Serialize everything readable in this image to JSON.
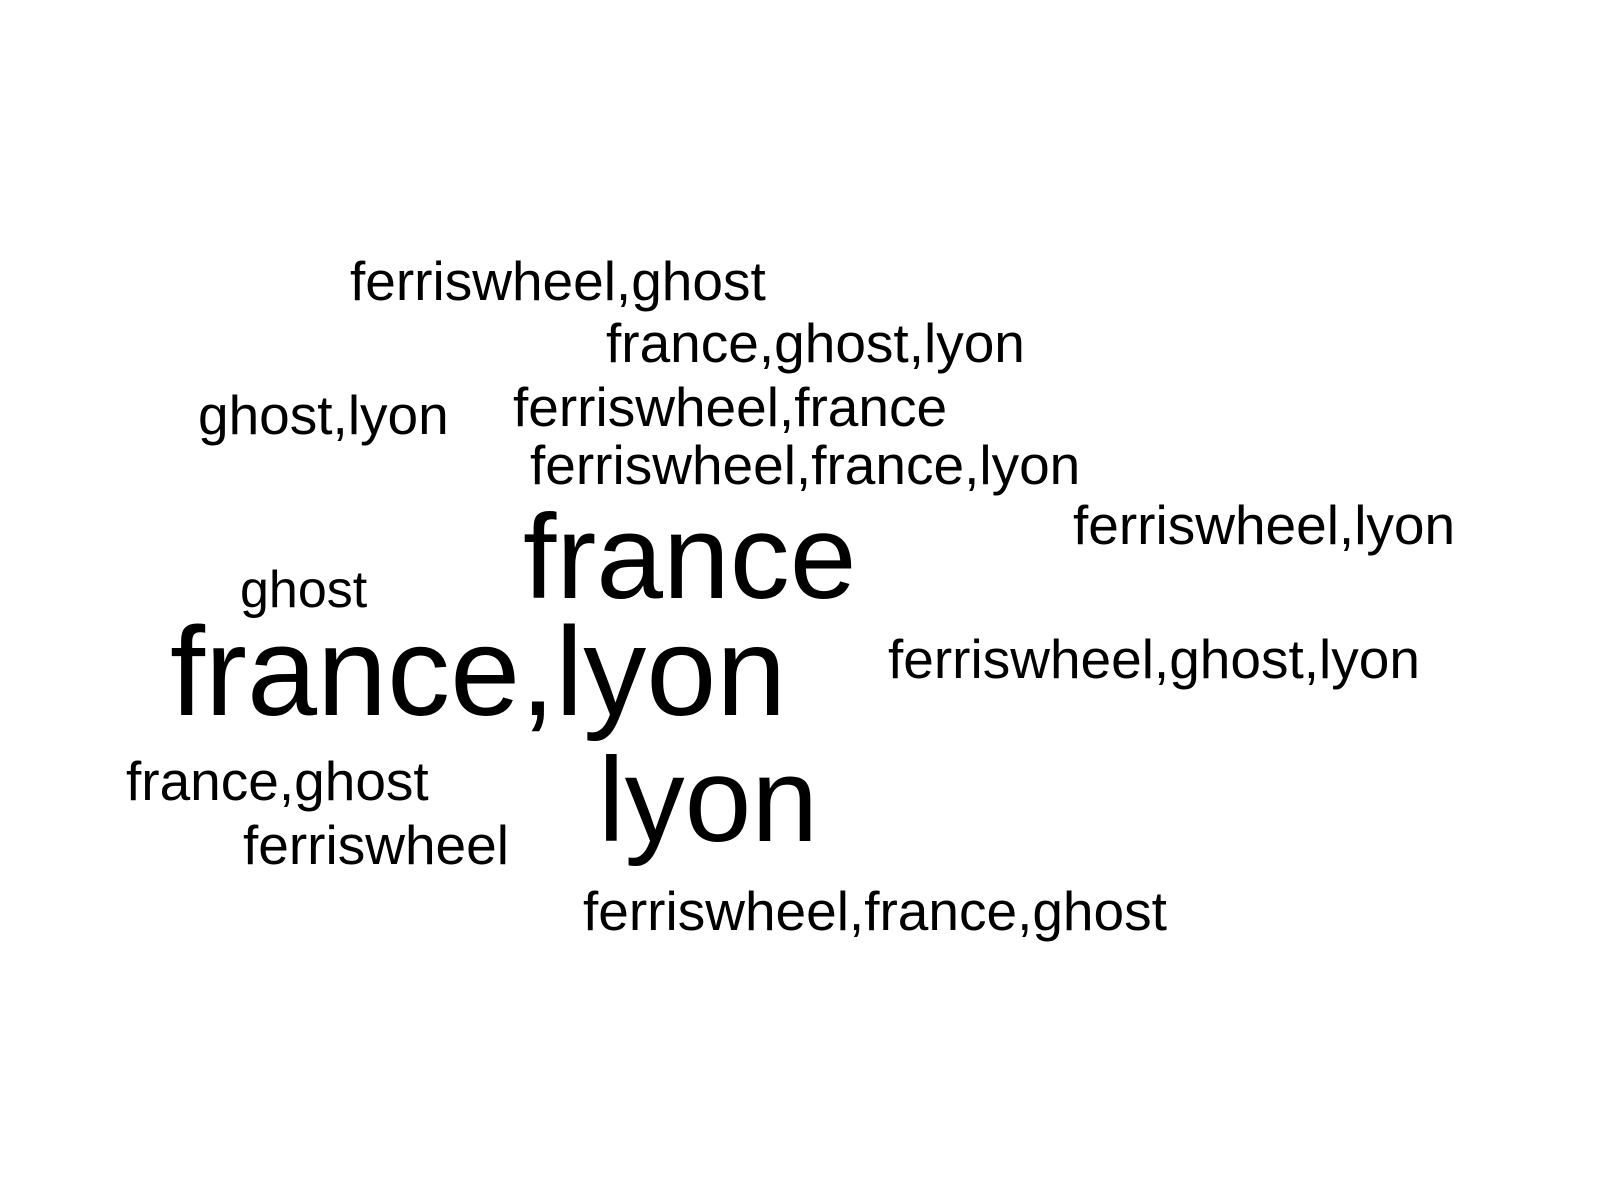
{
  "words": {
    "ferriswheel_ghost": "ferriswheel,ghost",
    "france_ghost_lyon": "france,ghost,lyon",
    "ghost_lyon": "ghost,lyon",
    "ferriswheel_france": "ferriswheel,france",
    "ferriswheel_france_lyon": "ferriswheel,france,lyon",
    "ferriswheel_lyon": "ferriswheel,lyon",
    "france": "france",
    "ghost": "ghost",
    "france_lyon": "france,lyon",
    "ferriswheel_ghost_lyon": "ferriswheel,ghost,lyon",
    "france_ghost": "france,ghost",
    "lyon": "lyon",
    "ferriswheel": "ferriswheel",
    "ferriswheel_france_ghost": "ferriswheel,france,ghost"
  },
  "colors": {
    "background": "#ffffff",
    "text": "#000000"
  }
}
